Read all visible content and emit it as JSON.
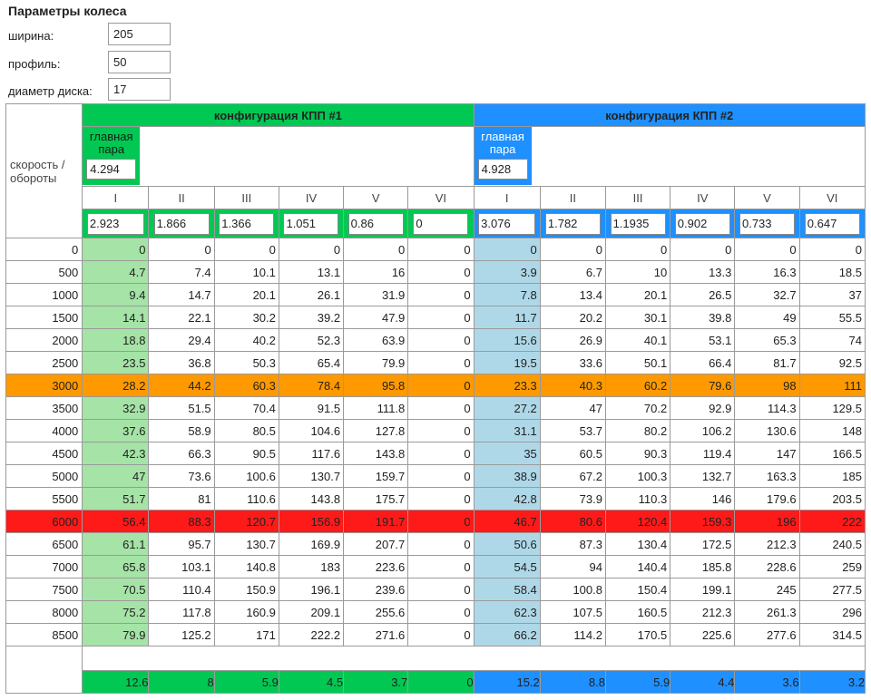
{
  "params": {
    "title": "Параметры колеса",
    "width_label": "ширина:",
    "width_value": "205",
    "profile_label": "профиль:",
    "profile_value": "50",
    "diameter_label": "диаметр диска:",
    "diameter_value": "17"
  },
  "table": {
    "corner_label": "скорость / обороты",
    "config1_title": "конфигурация КПП #1",
    "config2_title": "конфигурация КПП #2",
    "main_pair_label": "главная пара",
    "config1_main_pair": "4.294",
    "config2_main_pair": "4.928",
    "gears": [
      "I",
      "II",
      "III",
      "IV",
      "V",
      "VI"
    ],
    "config1_ratios": [
      "2.923",
      "1.866",
      "1.366",
      "1.051",
      "0.86",
      "0"
    ],
    "config2_ratios": [
      "3.076",
      "1.782",
      "1.1935",
      "0.902",
      "0.733",
      "0.647"
    ],
    "rows": [
      {
        "rpm": "0",
        "hl": "",
        "c1": [
          "0",
          "0",
          "0",
          "0",
          "0",
          "0"
        ],
        "c2": [
          "0",
          "0",
          "0",
          "0",
          "0",
          "0"
        ]
      },
      {
        "rpm": "500",
        "hl": "",
        "c1": [
          "4.7",
          "7.4",
          "10.1",
          "13.1",
          "16",
          "0"
        ],
        "c2": [
          "3.9",
          "6.7",
          "10",
          "13.3",
          "16.3",
          "18.5"
        ]
      },
      {
        "rpm": "1000",
        "hl": "",
        "c1": [
          "9.4",
          "14.7",
          "20.1",
          "26.1",
          "31.9",
          "0"
        ],
        "c2": [
          "7.8",
          "13.4",
          "20.1",
          "26.5",
          "32.7",
          "37"
        ]
      },
      {
        "rpm": "1500",
        "hl": "",
        "c1": [
          "14.1",
          "22.1",
          "30.2",
          "39.2",
          "47.9",
          "0"
        ],
        "c2": [
          "11.7",
          "20.2",
          "30.1",
          "39.8",
          "49",
          "55.5"
        ]
      },
      {
        "rpm": "2000",
        "hl": "",
        "c1": [
          "18.8",
          "29.4",
          "40.2",
          "52.3",
          "63.9",
          "0"
        ],
        "c2": [
          "15.6",
          "26.9",
          "40.1",
          "53.1",
          "65.3",
          "74"
        ]
      },
      {
        "rpm": "2500",
        "hl": "",
        "c1": [
          "23.5",
          "36.8",
          "50.3",
          "65.4",
          "79.9",
          "0"
        ],
        "c2": [
          "19.5",
          "33.6",
          "50.1",
          "66.4",
          "81.7",
          "92.5"
        ]
      },
      {
        "rpm": "3000",
        "hl": "orange",
        "c1": [
          "28.2",
          "44.2",
          "60.3",
          "78.4",
          "95.8",
          "0"
        ],
        "c2": [
          "23.3",
          "40.3",
          "60.2",
          "79.6",
          "98",
          "111"
        ]
      },
      {
        "rpm": "3500",
        "hl": "",
        "c1": [
          "32.9",
          "51.5",
          "70.4",
          "91.5",
          "111.8",
          "0"
        ],
        "c2": [
          "27.2",
          "47",
          "70.2",
          "92.9",
          "114.3",
          "129.5"
        ]
      },
      {
        "rpm": "4000",
        "hl": "",
        "c1": [
          "37.6",
          "58.9",
          "80.5",
          "104.6",
          "127.8",
          "0"
        ],
        "c2": [
          "31.1",
          "53.7",
          "80.2",
          "106.2",
          "130.6",
          "148"
        ]
      },
      {
        "rpm": "4500",
        "hl": "",
        "c1": [
          "42.3",
          "66.3",
          "90.5",
          "117.6",
          "143.8",
          "0"
        ],
        "c2": [
          "35",
          "60.5",
          "90.3",
          "119.4",
          "147",
          "166.5"
        ]
      },
      {
        "rpm": "5000",
        "hl": "",
        "c1": [
          "47",
          "73.6",
          "100.6",
          "130.7",
          "159.7",
          "0"
        ],
        "c2": [
          "38.9",
          "67.2",
          "100.3",
          "132.7",
          "163.3",
          "185"
        ]
      },
      {
        "rpm": "5500",
        "hl": "",
        "c1": [
          "51.7",
          "81",
          "110.6",
          "143.8",
          "175.7",
          "0"
        ],
        "c2": [
          "42.8",
          "73.9",
          "110.3",
          "146",
          "179.6",
          "203.5"
        ]
      },
      {
        "rpm": "6000",
        "hl": "red",
        "c1": [
          "56.4",
          "88.3",
          "120.7",
          "156.9",
          "191.7",
          "0"
        ],
        "c2": [
          "46.7",
          "80.6",
          "120.4",
          "159.3",
          "196",
          "222"
        ]
      },
      {
        "rpm": "6500",
        "hl": "",
        "c1": [
          "61.1",
          "95.7",
          "130.7",
          "169.9",
          "207.7",
          "0"
        ],
        "c2": [
          "50.6",
          "87.3",
          "130.4",
          "172.5",
          "212.3",
          "240.5"
        ]
      },
      {
        "rpm": "7000",
        "hl": "",
        "c1": [
          "65.8",
          "103.1",
          "140.8",
          "183",
          "223.6",
          "0"
        ],
        "c2": [
          "54.5",
          "94",
          "140.4",
          "185.8",
          "228.6",
          "259"
        ]
      },
      {
        "rpm": "7500",
        "hl": "",
        "c1": [
          "70.5",
          "110.4",
          "150.9",
          "196.1",
          "239.6",
          "0"
        ],
        "c2": [
          "58.4",
          "100.8",
          "150.4",
          "199.1",
          "245",
          "277.5"
        ]
      },
      {
        "rpm": "8000",
        "hl": "",
        "c1": [
          "75.2",
          "117.8",
          "160.9",
          "209.1",
          "255.6",
          "0"
        ],
        "c2": [
          "62.3",
          "107.5",
          "160.5",
          "212.3",
          "261.3",
          "296"
        ]
      },
      {
        "rpm": "8500",
        "hl": "",
        "c1": [
          "79.9",
          "125.2",
          "171",
          "222.2",
          "271.6",
          "0"
        ],
        "c2": [
          "66.2",
          "114.2",
          "170.5",
          "225.6",
          "277.6",
          "314.5"
        ]
      }
    ],
    "summary_c1": [
      "12.6",
      "8",
      "5.9",
      "4.5",
      "3.7",
      "0"
    ],
    "summary_c2": [
      "15.2",
      "8.8",
      "5.9",
      "4.4",
      "3.6",
      "3.2"
    ]
  },
  "colors": {
    "config1": "#00c853",
    "config2": "#1e90ff",
    "first_gear_c1": "#a5e3a6",
    "first_gear_c2": "#aed8e8",
    "highlight_3000": "#ff9900",
    "highlight_6000": "#ff1a1a"
  }
}
